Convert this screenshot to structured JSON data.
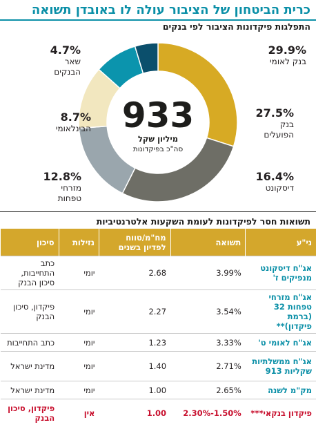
{
  "title": "כרית הביטחון של הציבור עולה לו באובדן תשואה",
  "subtitle": "התפלגות פיקדונות הציבור לפי בנקים",
  "colors": {
    "accent": "#0a8fa7",
    "header": "#d4a72c",
    "risk": "#c8102e"
  },
  "chart_data": {
    "type": "pie",
    "title": "התפלגות פיקדונות הציבור לפי בנקים",
    "center": {
      "value": "933",
      "unit": "מיליון שקל",
      "label": "סה\"כ בפיקדונות"
    },
    "slices": [
      {
        "label": "בנק לאומי",
        "value": 29.9,
        "display": "29.9%",
        "color": "#d7aa24"
      },
      {
        "label": "בנק הפועלים",
        "value": 27.5,
        "display": "27.5%",
        "color": "#6e6e66"
      },
      {
        "label": "דיסקונט",
        "value": 16.4,
        "display": "16.4%",
        "color": "#9aa6ad"
      },
      {
        "label": "מזרחי טפחות",
        "value": 12.8,
        "display": "12.8%",
        "color": "#f2e7bf"
      },
      {
        "label": "הבינלאומי",
        "value": 8.7,
        "display": "8.7%",
        "color": "#0b94ad"
      },
      {
        "label": "שאר הבנקים",
        "value": 4.7,
        "display": "4.7%",
        "color": "#0b4f6c"
      }
    ]
  },
  "labels": {
    "leumi": {
      "pct": "29.9%",
      "name": [
        "בנק לאומי"
      ]
    },
    "hapoalim": {
      "pct": "27.5%",
      "name": [
        "בנק",
        "הפועלים"
      ]
    },
    "discount": {
      "pct": "16.4%",
      "name": [
        "דיסקונט"
      ]
    },
    "mizrahi": {
      "pct": "12.8%",
      "name": [
        "מזרחי",
        "טפחות"
      ]
    },
    "beinleumi": {
      "pct": "8.7%",
      "name": [
        "הבינלאומי"
      ]
    },
    "others": {
      "pct": "4.7%",
      "name": [
        "שאר",
        "הבנקים"
      ]
    }
  },
  "table": {
    "title": "תשואות חסר לפיקדונות לעומת השקעות אלטרנטיביות",
    "headers": [
      "ני\"ע",
      "תשואה",
      "מח\"מ/טווח לפדיון בשנים",
      "נזילות",
      "סיכון"
    ],
    "rows": [
      [
        "אג\"ח דיסקונט מנפיקים ז'",
        "3.99%",
        "2.68",
        "יומי",
        "כתב התחייבות, סיכון הבנק"
      ],
      [
        "אג\"ח מזרחי טפחות 32 (ברמת פיקדון)**",
        "3.54%",
        "2.27",
        "יומי",
        "פיקדון, סיכון הבנק"
      ],
      [
        "אג\"ח לאומי ט'",
        "3.33%",
        "1.23",
        "יומי",
        "כתב התחייבות"
      ],
      [
        "אג\"ח ממשלתיות שקליות 913",
        "2.71%",
        "1.40",
        "יומי",
        "מדינת ישראל"
      ],
      [
        "מק\"מ לשנה",
        "2.65%",
        "1.00",
        "יומי",
        "מדינת ישראל"
      ],
      [
        "פיקדון בנקאי***",
        "2.30%-1.50%",
        "1.00",
        "אין",
        "פיקדון, סיכון הבנק"
      ]
    ]
  }
}
